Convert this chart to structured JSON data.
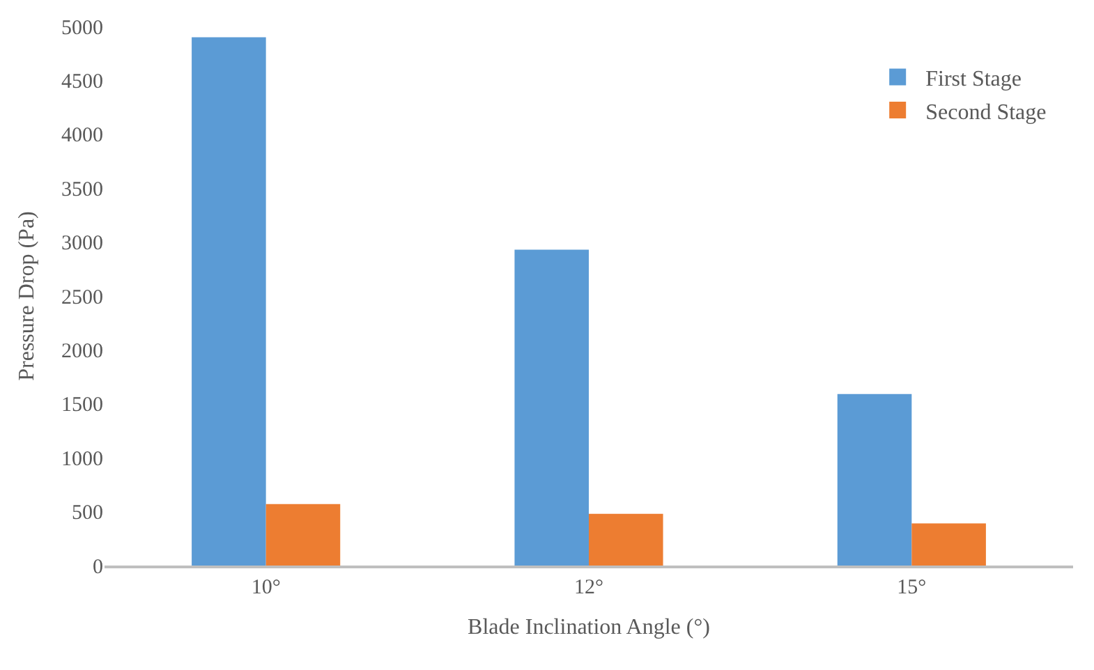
{
  "chart_data": {
    "type": "bar",
    "xlabel": "Blade Inclination Angle (°)",
    "ylabel": "Pressure Drop (Pa)",
    "categories": [
      "10°",
      "12°",
      "15°"
    ],
    "series": [
      {
        "name": "First Stage",
        "color": "#5b9bd5",
        "values": [
          4900,
          2930,
          1590
        ]
      },
      {
        "name": "Second Stage",
        "color": "#ed7d31",
        "values": [
          570,
          480,
          390
        ]
      }
    ],
    "ylim": [
      0,
      5000
    ],
    "yticks": [
      0,
      500,
      1000,
      1500,
      2000,
      2500,
      3000,
      3500,
      4000,
      4500,
      5000
    ],
    "legend": "top right"
  }
}
